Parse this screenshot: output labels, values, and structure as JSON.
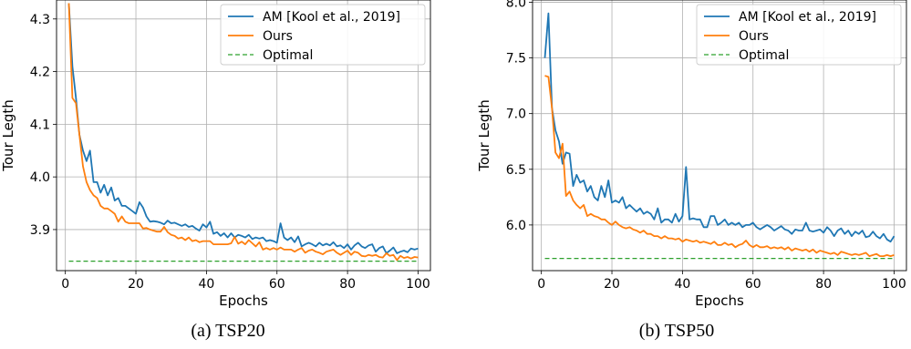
{
  "chart_data": [
    {
      "type": "line",
      "caption": "(a) TSP20",
      "xlabel": "Epochs",
      "ylabel": "Tour Legth",
      "xlim": [
        -2.5,
        103.5
      ],
      "ylim": [
        3.822,
        4.336
      ],
      "xticks": [
        0,
        20,
        40,
        60,
        80,
        100
      ],
      "xtick_labels": [
        "0",
        "20",
        "40",
        "60",
        "80",
        "100"
      ],
      "yticks": [
        3.9,
        4.0,
        4.1,
        4.2,
        4.3
      ],
      "ytick_labels": [
        "3.9",
        "4.0",
        "4.1",
        "4.2",
        "4.3"
      ],
      "grid": true,
      "legend_position": "top-right",
      "series": [
        {
          "name": "AM [Kool et al., 2019]",
          "color": "#1f77b4",
          "dashed": false,
          "x": [
            1,
            2,
            3,
            4,
            5,
            6,
            7,
            8,
            9,
            10,
            11,
            12,
            13,
            14,
            15,
            16,
            17,
            18,
            19,
            20,
            21,
            22,
            23,
            24,
            25,
            26,
            27,
            28,
            29,
            30,
            31,
            32,
            33,
            34,
            35,
            36,
            37,
            38,
            39,
            40,
            41,
            42,
            43,
            44,
            45,
            46,
            47,
            48,
            49,
            50,
            51,
            52,
            53,
            54,
            55,
            56,
            57,
            58,
            59,
            60,
            61,
            62,
            63,
            64,
            65,
            66,
            67,
            68,
            69,
            70,
            71,
            72,
            73,
            74,
            75,
            76,
            77,
            78,
            79,
            80,
            81,
            82,
            83,
            84,
            85,
            86,
            87,
            88,
            89,
            90,
            91,
            92,
            93,
            94,
            95,
            96,
            97,
            98,
            99,
            100
          ],
          "y": [
            4.33,
            4.21,
            4.15,
            4.08,
            4.05,
            4.03,
            4.05,
            3.99,
            3.99,
            3.97,
            3.985,
            3.965,
            3.98,
            3.955,
            3.96,
            3.945,
            3.945,
            3.94,
            3.935,
            3.93,
            3.952,
            3.942,
            3.925,
            3.915,
            3.916,
            3.915,
            3.913,
            3.91,
            3.917,
            3.912,
            3.913,
            3.91,
            3.907,
            3.91,
            3.905,
            3.907,
            3.902,
            3.898,
            3.91,
            3.904,
            3.915,
            3.892,
            3.895,
            3.888,
            3.893,
            3.885,
            3.893,
            3.885,
            3.89,
            3.888,
            3.885,
            3.89,
            3.882,
            3.885,
            3.883,
            3.885,
            3.878,
            3.88,
            3.878,
            3.875,
            3.912,
            3.885,
            3.88,
            3.885,
            3.876,
            3.887,
            3.868,
            3.872,
            3.875,
            3.872,
            3.868,
            3.875,
            3.87,
            3.873,
            3.87,
            3.876,
            3.868,
            3.87,
            3.865,
            3.872,
            3.862,
            3.87,
            3.875,
            3.868,
            3.865,
            3.87,
            3.872,
            3.858,
            3.865,
            3.868,
            3.855,
            3.86,
            3.866,
            3.855,
            3.858,
            3.86,
            3.857,
            3.864,
            3.862,
            3.864
          ]
        },
        {
          "name": "Ours",
          "color": "#ff7f0e",
          "dashed": false,
          "x": [
            1,
            2,
            3,
            4,
            5,
            6,
            7,
            8,
            9,
            10,
            11,
            12,
            13,
            14,
            15,
            16,
            17,
            18,
            19,
            20,
            21,
            22,
            23,
            24,
            25,
            26,
            27,
            28,
            29,
            30,
            31,
            32,
            33,
            34,
            35,
            36,
            37,
            38,
            39,
            40,
            41,
            42,
            43,
            44,
            45,
            46,
            47,
            48,
            49,
            50,
            51,
            52,
            53,
            54,
            55,
            56,
            57,
            58,
            59,
            60,
            61,
            62,
            63,
            64,
            65,
            66,
            67,
            68,
            69,
            70,
            71,
            72,
            73,
            74,
            75,
            76,
            77,
            78,
            79,
            80,
            81,
            82,
            83,
            84,
            85,
            86,
            87,
            88,
            89,
            90,
            91,
            92,
            93,
            94,
            95,
            96,
            97,
            98,
            99,
            100
          ],
          "y": [
            4.33,
            4.15,
            4.14,
            4.08,
            4.02,
            3.99,
            3.975,
            3.965,
            3.96,
            3.945,
            3.94,
            3.94,
            3.935,
            3.93,
            3.915,
            3.925,
            3.915,
            3.912,
            3.912,
            3.912,
            3.912,
            3.902,
            3.903,
            3.9,
            3.898,
            3.896,
            3.896,
            3.905,
            3.895,
            3.89,
            3.888,
            3.883,
            3.885,
            3.88,
            3.885,
            3.878,
            3.88,
            3.876,
            3.878,
            3.878,
            3.878,
            3.872,
            3.872,
            3.872,
            3.872,
            3.872,
            3.874,
            3.886,
            3.873,
            3.877,
            3.872,
            3.88,
            3.874,
            3.868,
            3.876,
            3.862,
            3.865,
            3.862,
            3.865,
            3.862,
            3.866,
            3.862,
            3.862,
            3.862,
            3.858,
            3.862,
            3.865,
            3.856,
            3.86,
            3.862,
            3.858,
            3.856,
            3.853,
            3.858,
            3.86,
            3.862,
            3.856,
            3.852,
            3.856,
            3.86,
            3.852,
            3.858,
            3.856,
            3.85,
            3.849,
            3.852,
            3.85,
            3.852,
            3.848,
            3.847,
            3.855,
            3.85,
            3.852,
            3.842,
            3.85,
            3.846,
            3.848,
            3.845,
            3.848,
            3.847
          ]
        },
        {
          "name": "Optimal",
          "color": "#2ca02c",
          "dashed": true,
          "x": [
            1,
            100
          ],
          "y": [
            3.84,
            3.84
          ]
        }
      ]
    },
    {
      "type": "line",
      "caption": "(b) TSP50",
      "xlabel": "Epochs",
      "ylabel": "Tour Legth",
      "xlim": [
        -2.5,
        103.5
      ],
      "ylim": [
        5.59,
        8.02
      ],
      "xticks": [
        0,
        20,
        40,
        60,
        80,
        100
      ],
      "xtick_labels": [
        "0",
        "20",
        "40",
        "60",
        "80",
        "100"
      ],
      "yticks": [
        6.0,
        6.5,
        7.0,
        7.5,
        8.0
      ],
      "ytick_labels": [
        "6.0",
        "6.5",
        "7.0",
        "7.5",
        "8.0"
      ],
      "grid": true,
      "legend_position": "top-right",
      "series": [
        {
          "name": "AM [Kool et al., 2019]",
          "color": "#1f77b4",
          "dashed": false,
          "x": [
            1,
            2,
            3,
            4,
            5,
            6,
            7,
            8,
            9,
            10,
            11,
            12,
            13,
            14,
            15,
            16,
            17,
            18,
            19,
            20,
            21,
            22,
            23,
            24,
            25,
            26,
            27,
            28,
            29,
            30,
            31,
            32,
            33,
            34,
            35,
            36,
            37,
            38,
            39,
            40,
            41,
            42,
            43,
            44,
            45,
            46,
            47,
            48,
            49,
            50,
            51,
            52,
            53,
            54,
            55,
            56,
            57,
            58,
            59,
            60,
            61,
            62,
            63,
            64,
            65,
            66,
            67,
            68,
            69,
            70,
            71,
            72,
            73,
            74,
            75,
            76,
            77,
            78,
            79,
            80,
            81,
            82,
            83,
            84,
            85,
            86,
            87,
            88,
            89,
            90,
            91,
            92,
            93,
            94,
            95,
            96,
            97,
            98,
            99,
            100
          ],
          "y": [
            7.5,
            7.9,
            7.05,
            6.85,
            6.75,
            6.55,
            6.65,
            6.64,
            6.35,
            6.45,
            6.38,
            6.4,
            6.3,
            6.35,
            6.25,
            6.22,
            6.35,
            6.25,
            6.4,
            6.2,
            6.22,
            6.2,
            6.25,
            6.15,
            6.18,
            6.15,
            6.12,
            6.15,
            6.1,
            6.12,
            6.1,
            6.05,
            6.15,
            6.02,
            6.05,
            6.05,
            6.02,
            6.1,
            6.03,
            6.08,
            6.52,
            6.05,
            6.06,
            6.05,
            6.05,
            5.98,
            5.98,
            6.08,
            6.08,
            6.0,
            6.02,
            6.05,
            6.0,
            6.02,
            6.0,
            6.02,
            5.98,
            6.0,
            6.0,
            6.02,
            5.98,
            5.96,
            5.98,
            6.0,
            5.98,
            5.95,
            5.97,
            5.99,
            5.96,
            5.95,
            5.92,
            5.96,
            5.95,
            5.95,
            6.02,
            5.95,
            5.94,
            5.95,
            5.96,
            5.93,
            5.98,
            5.95,
            5.9,
            5.95,
            5.97,
            5.92,
            5.95,
            5.9,
            5.94,
            5.92,
            5.95,
            5.89,
            5.9,
            5.94,
            5.9,
            5.88,
            5.92,
            5.87,
            5.85,
            5.9
          ]
        },
        {
          "name": "Ours",
          "color": "#ff7f0e",
          "dashed": false,
          "x": [
            1,
            2,
            3,
            4,
            5,
            6,
            7,
            8,
            9,
            10,
            11,
            12,
            13,
            14,
            15,
            16,
            17,
            18,
            19,
            20,
            21,
            22,
            23,
            24,
            25,
            26,
            27,
            28,
            29,
            30,
            31,
            32,
            33,
            34,
            35,
            36,
            37,
            38,
            39,
            40,
            41,
            42,
            43,
            44,
            45,
            46,
            47,
            48,
            49,
            50,
            51,
            52,
            53,
            54,
            55,
            56,
            57,
            58,
            59,
            60,
            61,
            62,
            63,
            64,
            65,
            66,
            67,
            68,
            69,
            70,
            71,
            72,
            73,
            74,
            75,
            76,
            77,
            78,
            79,
            80,
            81,
            82,
            83,
            84,
            85,
            86,
            87,
            88,
            89,
            90,
            91,
            92,
            93,
            94,
            95,
            96,
            97,
            98,
            99,
            100
          ],
          "y": [
            7.34,
            7.33,
            7.05,
            6.65,
            6.6,
            6.73,
            6.26,
            6.3,
            6.22,
            6.18,
            6.15,
            6.18,
            6.08,
            6.1,
            6.08,
            6.07,
            6.05,
            6.05,
            6.02,
            6.0,
            6.03,
            6.0,
            5.98,
            5.97,
            5.98,
            5.96,
            5.95,
            5.93,
            5.95,
            5.92,
            5.92,
            5.9,
            5.9,
            5.88,
            5.9,
            5.88,
            5.88,
            5.87,
            5.88,
            5.85,
            5.87,
            5.86,
            5.85,
            5.86,
            5.84,
            5.85,
            5.84,
            5.83,
            5.85,
            5.82,
            5.82,
            5.84,
            5.82,
            5.83,
            5.8,
            5.82,
            5.83,
            5.86,
            5.82,
            5.8,
            5.82,
            5.8,
            5.8,
            5.81,
            5.79,
            5.8,
            5.79,
            5.8,
            5.78,
            5.8,
            5.77,
            5.79,
            5.78,
            5.77,
            5.78,
            5.76,
            5.78,
            5.75,
            5.77,
            5.76,
            5.75,
            5.74,
            5.75,
            5.73,
            5.76,
            5.75,
            5.74,
            5.73,
            5.74,
            5.73,
            5.74,
            5.75,
            5.72,
            5.73,
            5.74,
            5.72,
            5.72,
            5.73,
            5.72,
            5.73
          ]
        },
        {
          "name": "Optimal",
          "color": "#2ca02c",
          "dashed": true,
          "x": [
            1,
            100
          ],
          "y": [
            5.7,
            5.7
          ]
        }
      ]
    }
  ]
}
